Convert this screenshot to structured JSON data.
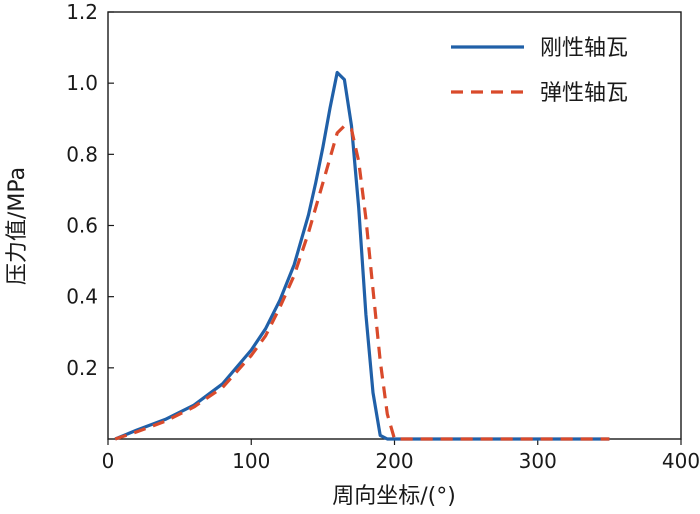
{
  "chart_data": {
    "type": "line",
    "title": "",
    "xlabel": "周向坐标/(°)",
    "ylabel": "压力值/MPa",
    "xlim": [
      0,
      400
    ],
    "ylim": [
      0,
      1.2
    ],
    "xticks": [
      0,
      100,
      200,
      300,
      400
    ],
    "xtick_labels": [
      "0",
      "100",
      "200",
      "300",
      "400"
    ],
    "yticks": [
      0.2,
      0.4,
      0.6,
      0.8,
      1.0,
      1.2
    ],
    "ytick_labels": [
      "0.2",
      "0.4",
      "0.6",
      "0.8",
      "1.0",
      "1.2"
    ],
    "grid": false,
    "legend_position": "top-right",
    "series": [
      {
        "name": "刚性轴瓦",
        "color": "#2060a8",
        "dash": "solid",
        "x": [
          5,
          20,
          40,
          60,
          80,
          100,
          110,
          120,
          130,
          140,
          145,
          150,
          155,
          160,
          165,
          170,
          175,
          180,
          185,
          190,
          195,
          200,
          205,
          220,
          250,
          300,
          350
        ],
        "y": [
          0.0,
          0.025,
          0.055,
          0.095,
          0.155,
          0.25,
          0.31,
          0.39,
          0.49,
          0.63,
          0.72,
          0.82,
          0.93,
          1.03,
          1.01,
          0.88,
          0.65,
          0.35,
          0.13,
          0.01,
          0.0,
          0.0,
          0.0,
          0.0,
          0.0,
          0.0,
          0.0
        ]
      },
      {
        "name": "弹性轴瓦",
        "color": "#d94a2b",
        "dash": "dashed",
        "x": [
          5,
          20,
          40,
          60,
          80,
          100,
          110,
          120,
          130,
          140,
          150,
          160,
          165,
          170,
          175,
          180,
          185,
          190,
          195,
          200,
          205,
          220,
          250,
          300,
          350
        ],
        "y": [
          0.0,
          0.02,
          0.05,
          0.09,
          0.145,
          0.235,
          0.29,
          0.37,
          0.46,
          0.58,
          0.72,
          0.86,
          0.88,
          0.87,
          0.78,
          0.62,
          0.42,
          0.22,
          0.07,
          0.0,
          0.0,
          0.0,
          0.0,
          0.0,
          0.0
        ]
      }
    ]
  }
}
